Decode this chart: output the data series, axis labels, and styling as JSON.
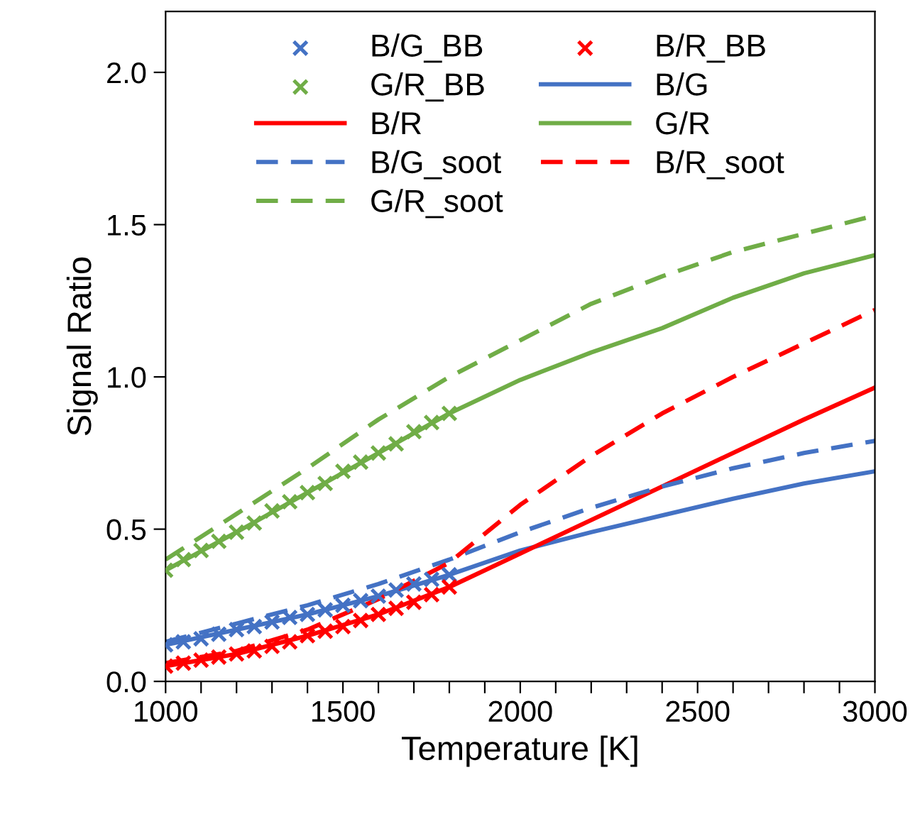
{
  "chart_data": {
    "type": "line",
    "xlabel": "Temperature [K]",
    "ylabel": "Signal Ratio",
    "xlim": [
      1000,
      3000
    ],
    "ylim": [
      0,
      2.2
    ],
    "xticks": [
      1000,
      {
        "value": 1100,
        "label": null
      },
      {
        "value": 1200,
        "label": null
      },
      {
        "value": 1300,
        "label": null
      },
      {
        "value": 1400,
        "label": null
      },
      1500,
      {
        "value": 1600,
        "label": null
      },
      {
        "value": 1700,
        "label": null
      },
      {
        "value": 1800,
        "label": null
      },
      {
        "value": 1900,
        "label": null
      },
      2000,
      {
        "value": 2100,
        "label": null
      },
      {
        "value": 2200,
        "label": null
      },
      {
        "value": 2300,
        "label": null
      },
      {
        "value": 2400,
        "label": null
      },
      2500,
      {
        "value": 2600,
        "label": null
      },
      {
        "value": 2700,
        "label": null
      },
      {
        "value": 2800,
        "label": null
      },
      {
        "value": 2900,
        "label": null
      },
      3000
    ],
    "yticks": [
      {
        "value": 0,
        "label": "0.0"
      },
      0.5,
      {
        "value": 1,
        "label": "1.0"
      },
      1.5,
      {
        "value": 2,
        "label": "2.0"
      }
    ],
    "grid": false,
    "legend": "top",
    "series": [
      {
        "name": "B/G_BB",
        "type": "scatter",
        "marker": "cross",
        "color": "#4472c4",
        "x": [
          1000,
          1050,
          1100,
          1150,
          1200,
          1250,
          1300,
          1350,
          1400,
          1450,
          1500,
          1550,
          1600,
          1650,
          1700,
          1750,
          1800
        ],
        "values": [
          0.12,
          0.13,
          0.14,
          0.155,
          0.17,
          0.18,
          0.195,
          0.21,
          0.22,
          0.235,
          0.25,
          0.265,
          0.28,
          0.3,
          0.32,
          0.335,
          0.35
        ]
      },
      {
        "name": "B/R_BB",
        "type": "scatter",
        "marker": "cross",
        "color": "#ff0000",
        "x": [
          1000,
          1050,
          1100,
          1150,
          1200,
          1250,
          1300,
          1350,
          1400,
          1450,
          1500,
          1550,
          1600,
          1650,
          1700,
          1750,
          1800
        ],
        "values": [
          0.05,
          0.06,
          0.07,
          0.08,
          0.09,
          0.1,
          0.115,
          0.13,
          0.15,
          0.165,
          0.18,
          0.2,
          0.22,
          0.24,
          0.26,
          0.285,
          0.31
        ]
      },
      {
        "name": "G/R_BB",
        "type": "scatter",
        "marker": "cross",
        "color": "#70ad47",
        "x": [
          1000,
          1050,
          1100,
          1150,
          1200,
          1250,
          1300,
          1350,
          1400,
          1450,
          1500,
          1550,
          1600,
          1650,
          1700,
          1750,
          1800
        ],
        "values": [
          0.365,
          0.4,
          0.43,
          0.46,
          0.49,
          0.52,
          0.56,
          0.59,
          0.62,
          0.65,
          0.69,
          0.72,
          0.75,
          0.78,
          0.82,
          0.85,
          0.88
        ]
      },
      {
        "name": "B/G",
        "line_style": "solid",
        "color": "#4472c4",
        "x": [
          1000,
          1200,
          1400,
          1600,
          1800,
          2000,
          2200,
          2400,
          2600,
          2800,
          3000
        ],
        "values": [
          0.12,
          0.17,
          0.22,
          0.28,
          0.35,
          0.43,
          0.49,
          0.545,
          0.6,
          0.65,
          0.69
        ]
      },
      {
        "name": "B/R",
        "line_style": "solid",
        "color": "#ff0000",
        "x": [
          1000,
          1200,
          1400,
          1600,
          1800,
          2000,
          2200,
          2400,
          2600,
          2800,
          3000
        ],
        "values": [
          0.05,
          0.09,
          0.15,
          0.22,
          0.31,
          0.42,
          0.53,
          0.64,
          0.75,
          0.86,
          0.965
        ]
      },
      {
        "name": "G/R",
        "line_style": "solid",
        "color": "#70ad47",
        "x": [
          1000,
          1200,
          1400,
          1600,
          1800,
          2000,
          2200,
          2400,
          2600,
          2800,
          3000
        ],
        "values": [
          0.365,
          0.49,
          0.62,
          0.75,
          0.88,
          0.99,
          1.08,
          1.16,
          1.26,
          1.34,
          1.4
        ]
      },
      {
        "name": "B/G_soot",
        "line_style": "dashed",
        "color": "#4472c4",
        "x": [
          1000,
          1200,
          1400,
          1600,
          1800,
          2000,
          2200,
          2400,
          2600,
          2800,
          3000
        ],
        "values": [
          0.13,
          0.19,
          0.25,
          0.32,
          0.4,
          0.49,
          0.57,
          0.64,
          0.7,
          0.75,
          0.79
        ]
      },
      {
        "name": "B/R_soot",
        "line_style": "dashed",
        "color": "#ff0000",
        "x": [
          1000,
          1200,
          1400,
          1600,
          1800,
          2000,
          2200,
          2400,
          2600,
          2800,
          3000
        ],
        "values": [
          0.06,
          0.1,
          0.17,
          0.27,
          0.39,
          0.58,
          0.74,
          0.88,
          1.0,
          1.11,
          1.22
        ]
      },
      {
        "name": "G/R_soot",
        "line_style": "dashed",
        "color": "#70ad47",
        "x": [
          1000,
          1200,
          1400,
          1600,
          1800,
          2000,
          2200,
          2400,
          2600,
          2800,
          3000
        ],
        "values": [
          0.4,
          0.55,
          0.7,
          0.86,
          1.0,
          1.12,
          1.24,
          1.33,
          1.41,
          1.47,
          1.53
        ]
      }
    ]
  }
}
